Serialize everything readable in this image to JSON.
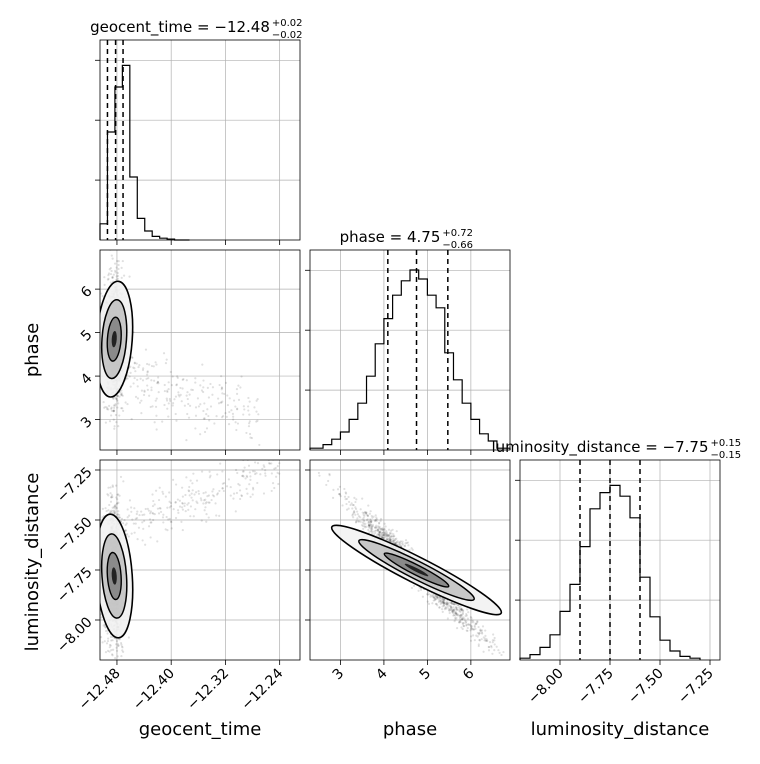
{
  "figure": {
    "title": "",
    "params": [
      "geocent_time",
      "phase",
      "luminosity_distance"
    ]
  },
  "chart_data": [
    {
      "type": "histogram",
      "panel": "geocent_time marginal",
      "title": {
        "prefix": "geocent_time = ",
        "value": "−12.48",
        "plus": "+0.02",
        "minus": "−0.02"
      },
      "x_range": [
        -12.505,
        -12.21
      ],
      "bin_edges": [
        -12.505,
        -12.494,
        -12.483,
        -12.472,
        -12.461,
        -12.45,
        -12.439,
        -12.428,
        -12.417,
        -12.406,
        -12.395,
        -12.384,
        -12.373
      ],
      "heights": [
        0.09,
        0.6,
        0.85,
        0.97,
        0.35,
        0.12,
        0.05,
        0.02,
        0.01,
        0.005,
        0,
        0
      ],
      "quantile_lines": [
        -12.494,
        -12.482,
        -12.471
      ],
      "xticks": [
        -12.48,
        -12.4,
        -12.32,
        -12.24
      ],
      "grid": true
    },
    {
      "type": "histogram",
      "panel": "phase marginal",
      "title": {
        "prefix": "phase = ",
        "value": "4.75",
        "plus": "+0.72",
        "minus": "−0.66"
      },
      "x_range": [
        2.3,
        6.9
      ],
      "bin_edges": [
        2.3,
        2.6,
        2.8,
        3.0,
        3.2,
        3.4,
        3.6,
        3.8,
        4.0,
        4.2,
        4.4,
        4.6,
        4.8,
        5.0,
        5.2,
        5.4,
        5.6,
        5.8,
        6.0,
        6.2,
        6.4,
        6.6,
        6.9
      ],
      "heights": [
        0.01,
        0.03,
        0.06,
        0.1,
        0.17,
        0.26,
        0.41,
        0.59,
        0.73,
        0.86,
        0.94,
        1.0,
        0.95,
        0.86,
        0.79,
        0.54,
        0.39,
        0.26,
        0.17,
        0.09,
        0.05,
        0.01
      ],
      "quantile_lines": [
        4.09,
        4.75,
        5.47
      ],
      "xticks": [
        3,
        4,
        5,
        6
      ],
      "grid": true
    },
    {
      "type": "histogram",
      "panel": "luminosity_distance marginal",
      "title": {
        "prefix": "luminosity_distance = ",
        "value": "−7.75",
        "plus": "+0.15",
        "minus": "−0.15"
      },
      "x_range": [
        -8.2,
        -7.2
      ],
      "bin_edges": [
        -8.2,
        -8.15,
        -8.1,
        -8.05,
        -8.0,
        -7.95,
        -7.9,
        -7.85,
        -7.8,
        -7.75,
        -7.7,
        -7.65,
        -7.6,
        -7.55,
        -7.5,
        -7.45,
        -7.4,
        -7.35,
        -7.3
      ],
      "heights": [
        0.01,
        0.03,
        0.07,
        0.14,
        0.27,
        0.42,
        0.63,
        0.84,
        0.93,
        0.97,
        0.91,
        0.79,
        0.46,
        0.24,
        0.11,
        0.05,
        0.02,
        0.01
      ],
      "quantile_lines": [
        -7.9,
        -7.75,
        -7.6
      ],
      "xticks": [
        -8.0,
        -7.75,
        -7.5,
        -7.25
      ],
      "grid": true
    },
    {
      "type": "scatter-contour",
      "panel": "phase vs geocent_time",
      "x_param": "geocent_time",
      "y_param": "phase",
      "x_range": [
        -12.505,
        -12.21
      ],
      "y_range": [
        2.3,
        6.9
      ],
      "yticks": [
        3,
        4,
        5,
        6
      ],
      "mean": [
        -12.484,
        4.85
      ],
      "tail_slope": -4.5
    },
    {
      "type": "scatter-contour",
      "panel": "luminosity_distance vs geocent_time",
      "x_param": "geocent_time",
      "y_param": "luminosity_distance",
      "x_range": [
        -12.505,
        -12.21
      ],
      "y_range": [
        -8.2,
        -7.2
      ],
      "xticks": [
        -12.48,
        -12.4,
        -12.32,
        -12.24
      ],
      "yticks": [
        -8.0,
        -7.75,
        -7.5,
        -7.25
      ],
      "mean": [
        -12.484,
        -7.78
      ],
      "tail_slope": 1.5
    },
    {
      "type": "scatter-contour",
      "panel": "luminosity_distance vs phase",
      "x_param": "phase",
      "y_param": "luminosity_distance",
      "x_range": [
        2.3,
        6.9
      ],
      "y_range": [
        -8.2,
        -7.2
      ],
      "xticks": [
        3,
        4,
        5,
        6
      ],
      "mean": [
        4.75,
        -7.75
      ],
      "slope": -0.215
    }
  ],
  "axis_labels": {
    "geocent_time": "geocent_time",
    "phase": "phase",
    "luminosity_distance": "luminosity_distance"
  }
}
